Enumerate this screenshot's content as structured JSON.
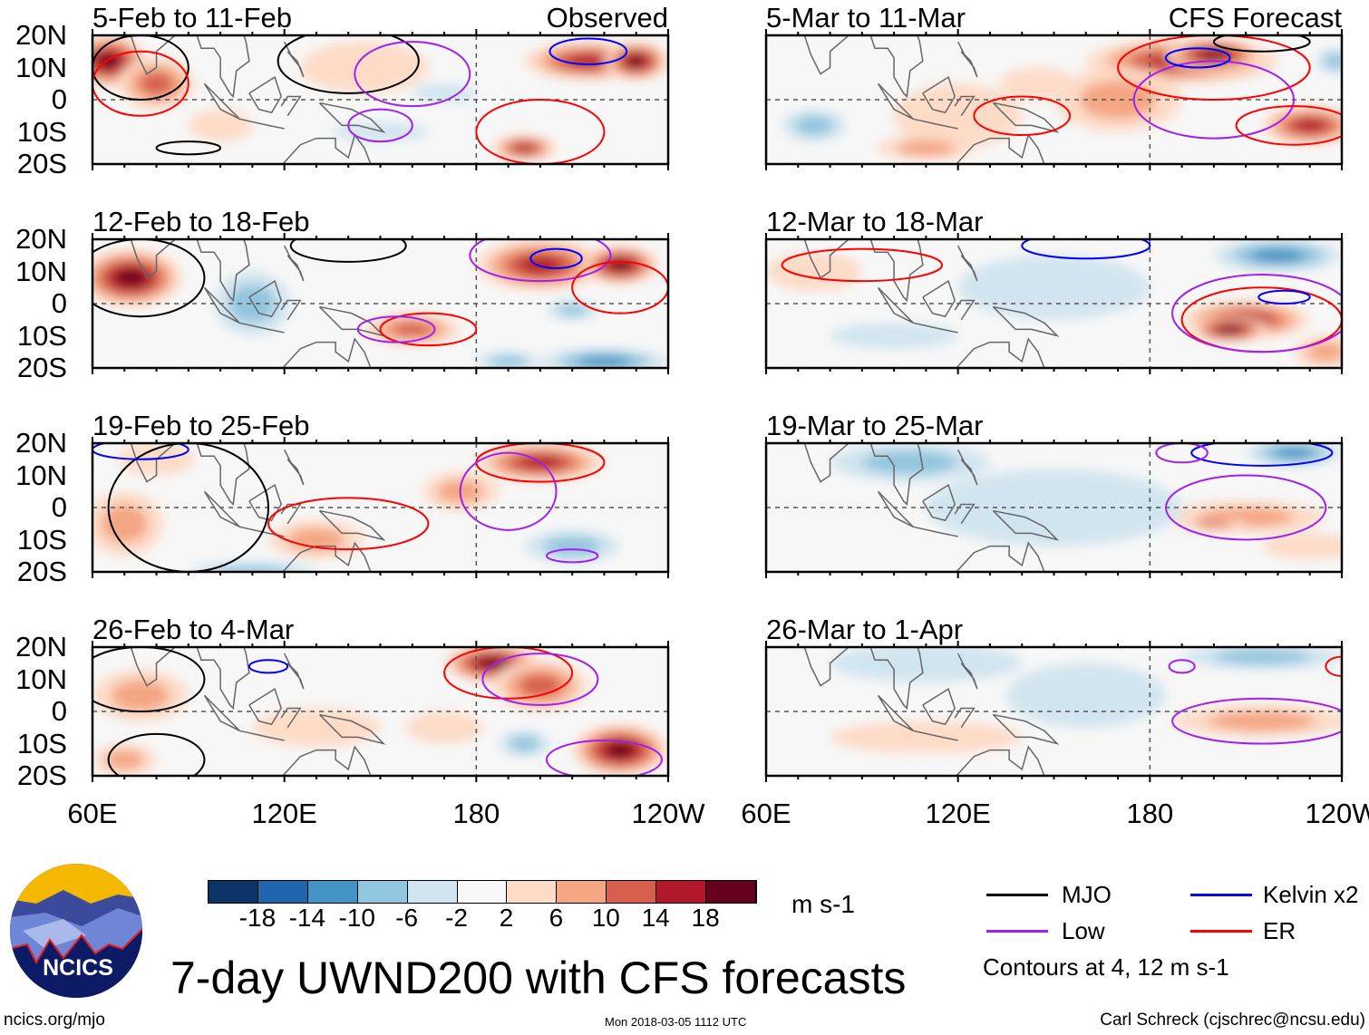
{
  "figure_title": "7-day UWND200 with CFS forecasts",
  "column_labels": {
    "left": "Observed",
    "right": "CFS Forecast"
  },
  "lat_labels": [
    "20N",
    "10N",
    "0",
    "10S",
    "20S"
  ],
  "lon_labels": [
    "60E",
    "120E",
    "180",
    "120W"
  ],
  "colorbar": {
    "unit": "m s-1",
    "labels": [
      "-18",
      "-14",
      "-10",
      "-6",
      "-2",
      "2",
      "6",
      "10",
      "14",
      "18"
    ],
    "colors": [
      "#0b3366",
      "#2166ac",
      "#4393c3",
      "#92c5de",
      "#d1e5f0",
      "#f7f7f7",
      "#fddbc7",
      "#f4a582",
      "#d6604d",
      "#b2182b",
      "#67001f"
    ]
  },
  "legend": {
    "items": [
      {
        "label": "MJO",
        "color": "#000000"
      },
      {
        "label": "Kelvin x2",
        "color": "#0000ff"
      },
      {
        "label": "Low",
        "color": "#a020f0"
      },
      {
        "label": "ER",
        "color": "#ff0000"
      }
    ],
    "note": "Contours at 4, 12 m s-1"
  },
  "logo_text": "NCICS",
  "footer": {
    "left": "ncics.org/mjo",
    "center": "Mon 2018-03-05 1112 UTC",
    "right": "Carl Schreck (cjschrec@ncsu.edu)"
  },
  "chart_data": {
    "type": "heatmap",
    "lon_range": [
      60,
      240
    ],
    "lat_range": [
      -20,
      20
    ],
    "panels": [
      {
        "title": "5-Feb to 11-Feb",
        "blobs": [
          [
            65,
            12,
            12,
            8,
            20
          ],
          [
            80,
            5,
            12,
            8,
            12
          ],
          [
            100,
            -8,
            10,
            5,
            4
          ],
          [
            145,
            10,
            20,
            8,
            4
          ],
          [
            195,
            -15,
            10,
            4,
            16
          ],
          [
            215,
            12,
            20,
            6,
            16
          ],
          [
            230,
            12,
            10,
            6,
            20
          ],
          [
            170,
            2,
            10,
            3,
            -4
          ],
          [
            150,
            -10,
            15,
            3,
            -2
          ]
        ],
        "contours": [
          [
            75,
            10,
            15,
            10,
            "#000"
          ],
          [
            140,
            12,
            22,
            10,
            "#000"
          ],
          [
            75,
            5,
            15,
            10,
            "#f00"
          ],
          [
            200,
            -10,
            20,
            10,
            "#f00"
          ],
          [
            160,
            8,
            18,
            10,
            "#a020f0"
          ],
          [
            150,
            -8,
            10,
            5,
            "#a020f0"
          ],
          [
            215,
            15,
            12,
            4,
            "#00f"
          ],
          [
            90,
            -15,
            10,
            2,
            "#000"
          ]
        ]
      },
      {
        "title": "12-Feb to 18-Feb",
        "blobs": [
          [
            72,
            8,
            16,
            9,
            20
          ],
          [
            110,
            0,
            12,
            10,
            -8
          ],
          [
            160,
            -8,
            15,
            5,
            10
          ],
          [
            200,
            12,
            20,
            8,
            14
          ],
          [
            225,
            12,
            12,
            6,
            18
          ],
          [
            210,
            -2,
            8,
            3,
            -6
          ],
          [
            220,
            -18,
            20,
            4,
            -10
          ],
          [
            190,
            -18,
            10,
            3,
            -8
          ]
        ],
        "contours": [
          [
            75,
            8,
            20,
            12,
            "#000"
          ],
          [
            140,
            18,
            18,
            5,
            "#000"
          ],
          [
            165,
            -8,
            15,
            5,
            "#f00"
          ],
          [
            200,
            15,
            22,
            8,
            "#a020f0"
          ],
          [
            205,
            14,
            8,
            3,
            "#00f"
          ],
          [
            225,
            5,
            15,
            8,
            "#f00"
          ],
          [
            155,
            -8,
            12,
            4,
            "#a020f0"
          ]
        ]
      },
      {
        "title": "19-Feb to 25-Feb",
        "blobs": [
          [
            70,
            -5,
            12,
            10,
            6
          ],
          [
            130,
            -10,
            15,
            6,
            6
          ],
          [
            200,
            14,
            20,
            6,
            14
          ],
          [
            175,
            5,
            12,
            6,
            6
          ],
          [
            210,
            -12,
            15,
            5,
            -6
          ],
          [
            110,
            -20,
            20,
            3,
            -6
          ],
          [
            80,
            15,
            12,
            5,
            4
          ]
        ],
        "contours": [
          [
            90,
            0,
            25,
            20,
            "#000"
          ],
          [
            140,
            -5,
            25,
            8,
            "#f00"
          ],
          [
            200,
            14,
            20,
            6,
            "#f00"
          ],
          [
            190,
            5,
            15,
            12,
            "#a020f0"
          ],
          [
            210,
            -15,
            8,
            2,
            "#a020f0"
          ],
          [
            75,
            18,
            15,
            3,
            "#00f"
          ]
        ]
      },
      {
        "title": "26-Feb to 4-Mar",
        "blobs": [
          [
            75,
            5,
            15,
            8,
            6
          ],
          [
            185,
            15,
            15,
            6,
            18
          ],
          [
            200,
            8,
            15,
            8,
            12
          ],
          [
            225,
            -12,
            15,
            8,
            20
          ],
          [
            170,
            -5,
            12,
            5,
            4
          ],
          [
            130,
            -5,
            20,
            6,
            4
          ],
          [
            195,
            -10,
            8,
            4,
            -8
          ],
          [
            70,
            -15,
            10,
            5,
            8
          ]
        ],
        "contours": [
          [
            80,
            -15,
            15,
            8,
            "#000"
          ],
          [
            190,
            12,
            20,
            8,
            "#f00"
          ],
          [
            200,
            10,
            18,
            8,
            "#a020f0"
          ],
          [
            220,
            -15,
            18,
            6,
            "#a020f0"
          ],
          [
            115,
            14,
            6,
            2,
            "#00f"
          ],
          [
            75,
            10,
            20,
            10,
            "#000"
          ]
        ]
      },
      {
        "title": "5-Mar to 11-Mar",
        "blobs": [
          [
            190,
            12,
            30,
            7,
            14
          ],
          [
            200,
            14,
            15,
            5,
            20
          ],
          [
            230,
            -8,
            15,
            6,
            16
          ],
          [
            170,
            0,
            20,
            10,
            6
          ],
          [
            120,
            -5,
            20,
            10,
            4
          ],
          [
            75,
            -8,
            10,
            5,
            -6
          ],
          [
            145,
            5,
            12,
            5,
            4
          ],
          [
            238,
            12,
            6,
            4,
            -6
          ],
          [
            110,
            -15,
            15,
            4,
            6
          ]
        ],
        "contours": [
          [
            200,
            10,
            30,
            10,
            "#f00"
          ],
          [
            200,
            0,
            25,
            12,
            "#a020f0"
          ],
          [
            195,
            13,
            10,
            3,
            "#00f"
          ],
          [
            225,
            -8,
            18,
            6,
            "#f00"
          ],
          [
            140,
            -5,
            15,
            6,
            "#f00"
          ],
          [
            215,
            18,
            15,
            3,
            "#000"
          ]
        ]
      },
      {
        "title": "12-Mar to 18-Mar",
        "blobs": [
          [
            210,
            -5,
            20,
            6,
            16
          ],
          [
            205,
            -8,
            12,
            4,
            20
          ],
          [
            220,
            15,
            20,
            5,
            -10
          ],
          [
            150,
            5,
            30,
            10,
            -2
          ],
          [
            75,
            10,
            15,
            6,
            4
          ],
          [
            235,
            -15,
            10,
            5,
            8
          ],
          [
            100,
            -10,
            20,
            4,
            -2
          ]
        ],
        "contours": [
          [
            215,
            -5,
            25,
            10,
            "#f00"
          ],
          [
            215,
            -3,
            28,
            12,
            "#a020f0"
          ],
          [
            160,
            18,
            20,
            4,
            "#00f"
          ],
          [
            90,
            12,
            25,
            5,
            "#f00"
          ],
          [
            222,
            2,
            8,
            2,
            "#00f"
          ]
        ]
      },
      {
        "title": "19-Mar to 25-Mar",
        "blobs": [
          [
            105,
            14,
            25,
            6,
            -8
          ],
          [
            225,
            17,
            15,
            4,
            -10
          ],
          [
            210,
            -3,
            25,
            5,
            8
          ],
          [
            200,
            -5,
            10,
            2,
            12
          ],
          [
            150,
            0,
            40,
            12,
            -2
          ],
          [
            230,
            -12,
            15,
            4,
            4
          ]
        ],
        "contours": [
          [
            210,
            0,
            25,
            10,
            "#a020f0"
          ],
          [
            215,
            17,
            22,
            4,
            "#00f"
          ],
          [
            190,
            17,
            8,
            3,
            "#a020f0"
          ]
        ]
      },
      {
        "title": "26-Mar to 1-Apr",
        "blobs": [
          [
            110,
            15,
            30,
            6,
            -4
          ],
          [
            215,
            17,
            25,
            4,
            -8
          ],
          [
            215,
            -3,
            28,
            5,
            6
          ],
          [
            110,
            -8,
            30,
            5,
            4
          ],
          [
            160,
            5,
            25,
            10,
            -2
          ]
        ],
        "contours": [
          [
            215,
            -3,
            28,
            7,
            "#a020f0"
          ],
          [
            190,
            14,
            4,
            2,
            "#a020f0"
          ],
          [
            240,
            14,
            5,
            3,
            "#f00"
          ]
        ]
      }
    ]
  }
}
